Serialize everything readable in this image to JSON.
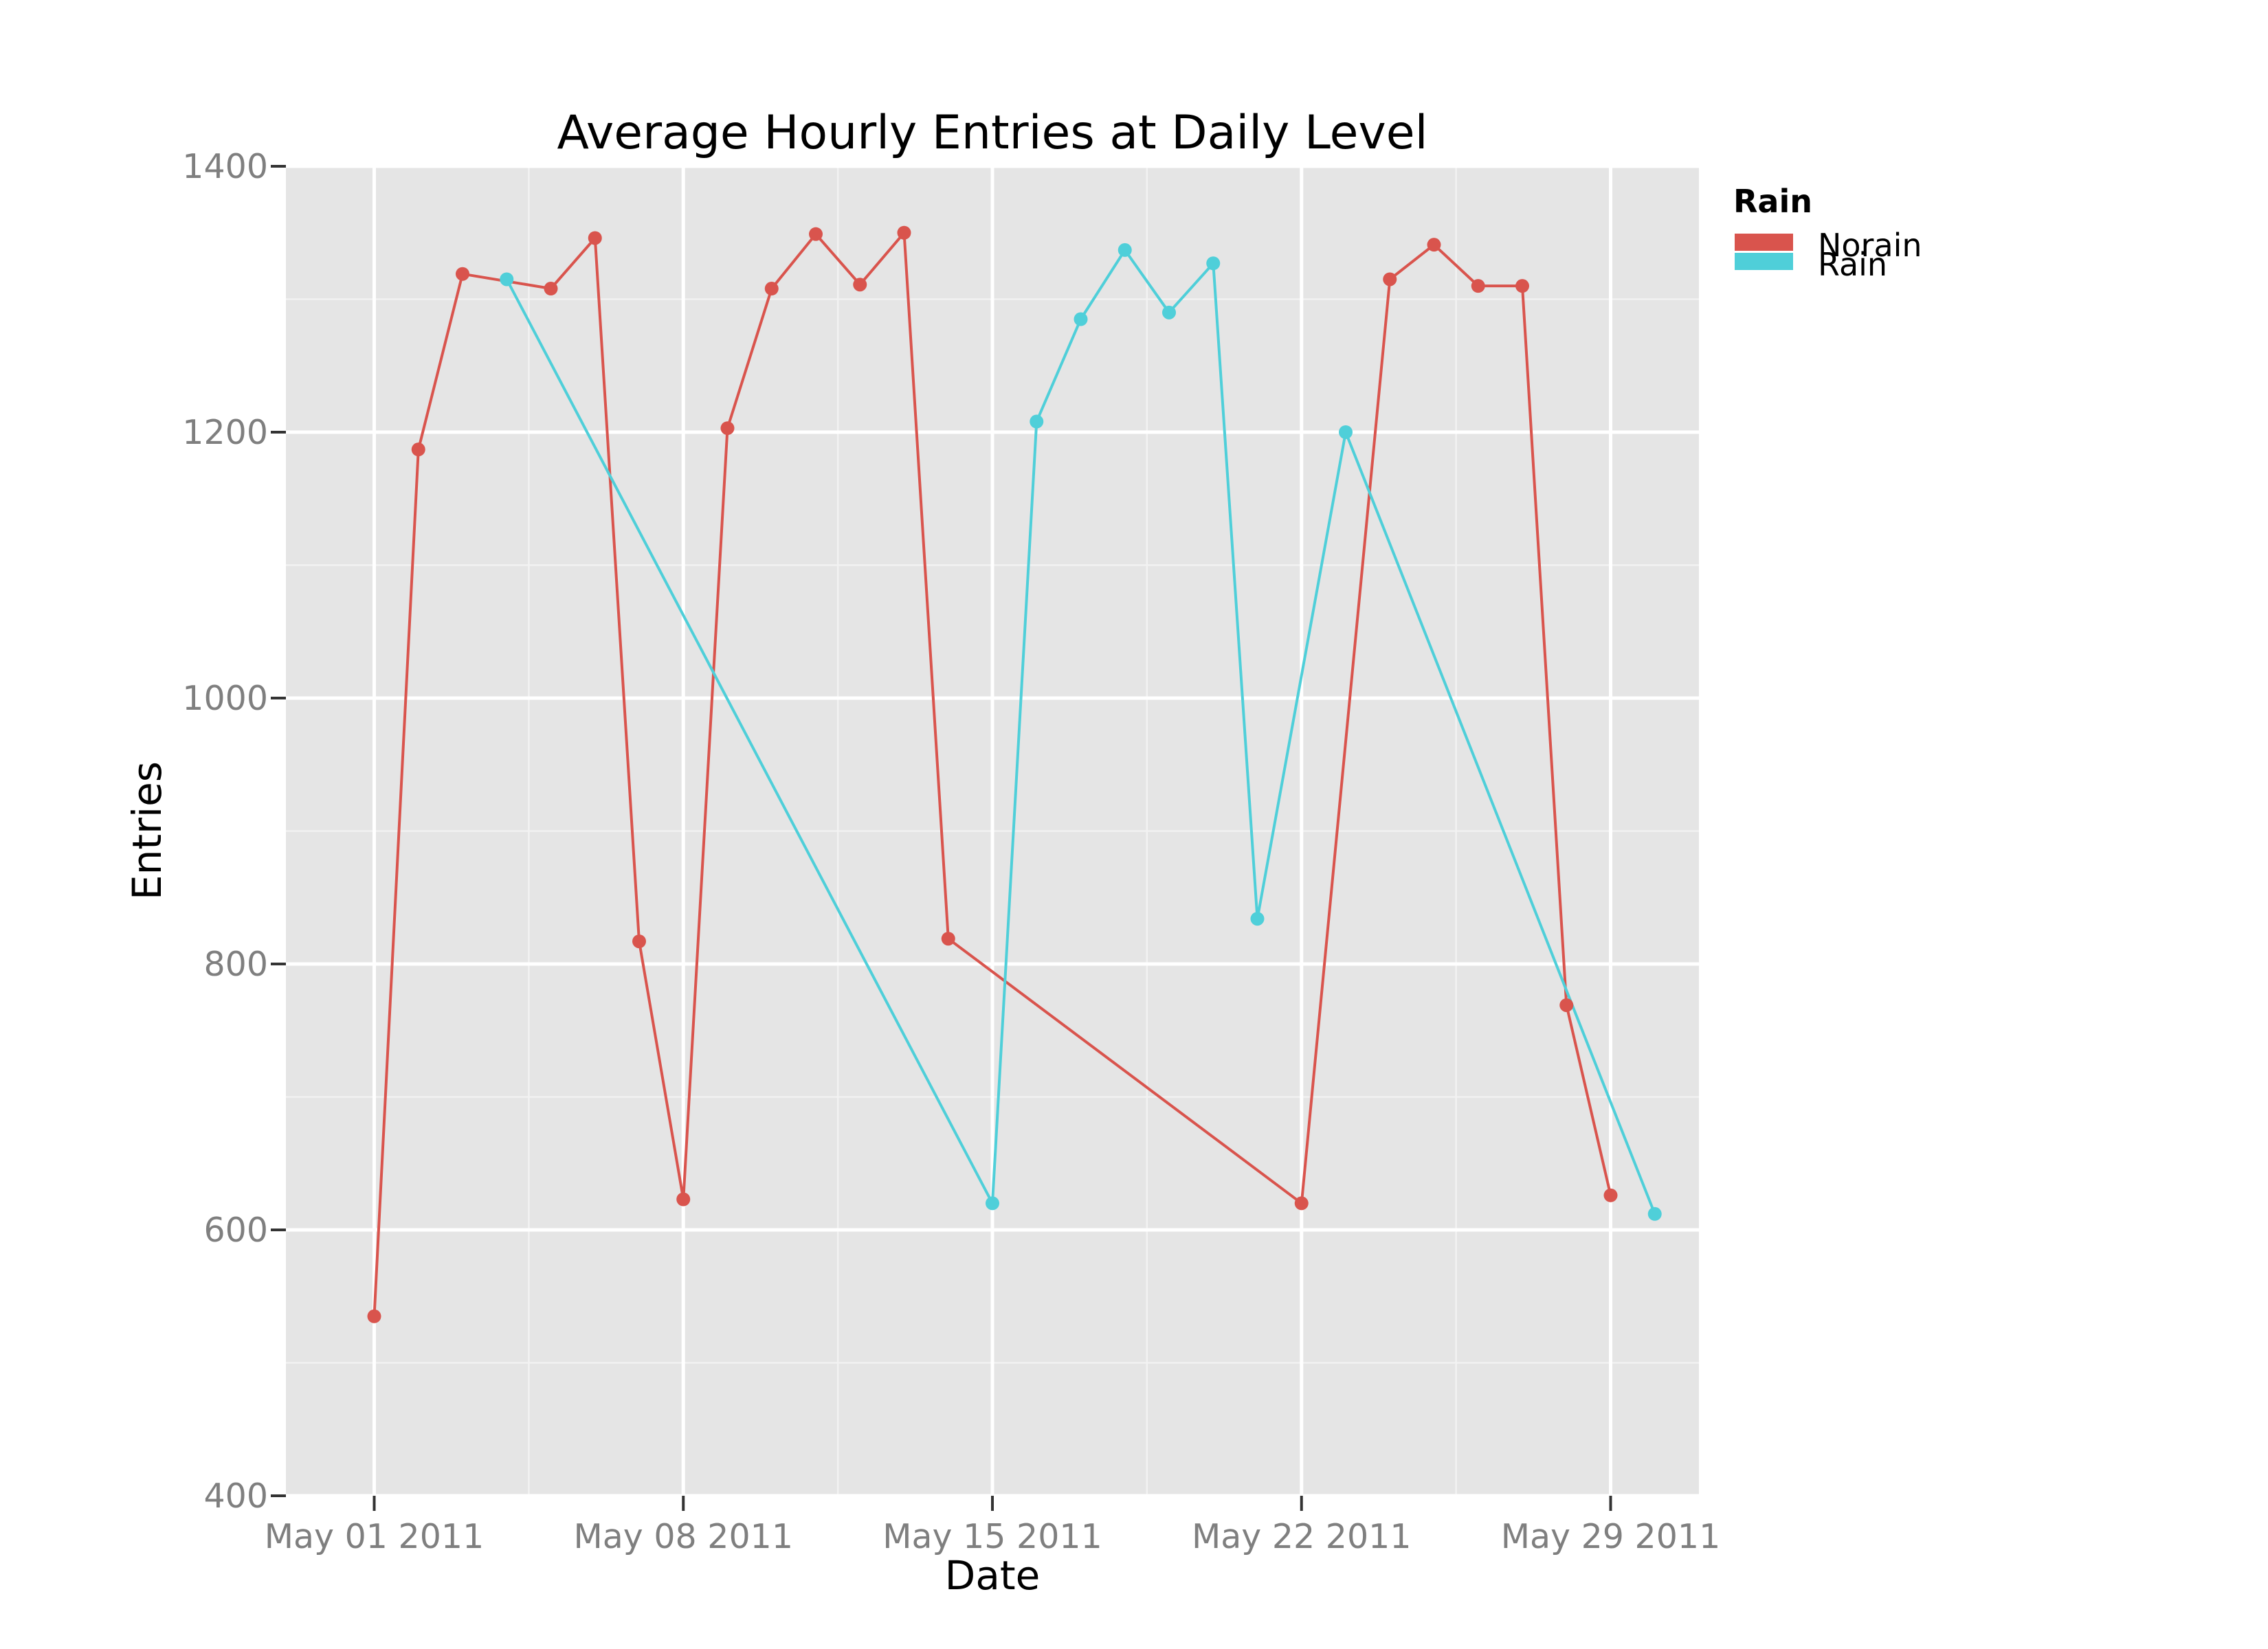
{
  "chart_data": {
    "type": "line",
    "title": "Average Hourly Entries at Daily Level",
    "xlabel": "Date",
    "ylabel": "Entries",
    "xlim": [
      "2011-04-29",
      "2011-05-31"
    ],
    "ylim": [
      400,
      1400
    ],
    "x_ticks": [
      {
        "date": "2011-05-01",
        "label": "May 01 2011"
      },
      {
        "date": "2011-05-08",
        "label": "May 08 2011"
      },
      {
        "date": "2011-05-15",
        "label": "May 15 2011"
      },
      {
        "date": "2011-05-22",
        "label": "May 22 2011"
      },
      {
        "date": "2011-05-29",
        "label": "May 29 2011"
      }
    ],
    "y_ticks": [
      400,
      600,
      800,
      1000,
      1200,
      1400
    ],
    "grid": true,
    "legend": {
      "title": "Rain",
      "placement": "right",
      "entries": [
        "Norain",
        "Rain"
      ]
    },
    "series": [
      {
        "name": "Norain",
        "color": "#d9544d",
        "points": [
          {
            "x": "2011-05-01",
            "y": 535
          },
          {
            "x": "2011-05-02",
            "y": 1187
          },
          {
            "x": "2011-05-03",
            "y": 1319
          },
          {
            "x": "2011-05-05",
            "y": 1308
          },
          {
            "x": "2011-05-06",
            "y": 1346
          },
          {
            "x": "2011-05-07",
            "y": 817
          },
          {
            "x": "2011-05-08",
            "y": 623
          },
          {
            "x": "2011-05-09",
            "y": 1203
          },
          {
            "x": "2011-05-10",
            "y": 1308
          },
          {
            "x": "2011-05-11",
            "y": 1349
          },
          {
            "x": "2011-05-12",
            "y": 1311
          },
          {
            "x": "2011-05-13",
            "y": 1350
          },
          {
            "x": "2011-05-14",
            "y": 819
          },
          {
            "x": "2011-05-22",
            "y": 620
          },
          {
            "x": "2011-05-24",
            "y": 1315
          },
          {
            "x": "2011-05-25",
            "y": 1341
          },
          {
            "x": "2011-05-26",
            "y": 1310
          },
          {
            "x": "2011-05-27",
            "y": 1310
          },
          {
            "x": "2011-05-28",
            "y": 769
          },
          {
            "x": "2011-05-29",
            "y": 626
          }
        ]
      },
      {
        "name": "Rain",
        "color": "#4fcfd9",
        "points": [
          {
            "x": "2011-05-04",
            "y": 1315
          },
          {
            "x": "2011-05-15",
            "y": 620
          },
          {
            "x": "2011-05-16",
            "y": 1208
          },
          {
            "x": "2011-05-17",
            "y": 1285
          },
          {
            "x": "2011-05-18",
            "y": 1337
          },
          {
            "x": "2011-05-19",
            "y": 1290
          },
          {
            "x": "2011-05-20",
            "y": 1327
          },
          {
            "x": "2011-05-21",
            "y": 834
          },
          {
            "x": "2011-05-23",
            "y": 1200
          },
          {
            "x": "2011-05-30",
            "y": 612
          }
        ]
      }
    ]
  },
  "colors": {
    "panel_background": "#e5e5e5",
    "grid_major": "#ffffff",
    "grid_minor": "#f2f2f2",
    "tick_text": "#7f7f7f"
  }
}
